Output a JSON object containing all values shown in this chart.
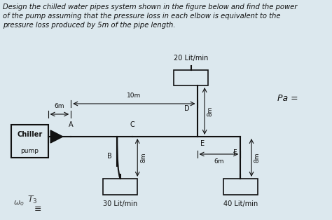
{
  "title_text": "Design the chilled water pipes system shown in the figure below and find the power\nof the pump assuming that the pressure loss in each elbow is equivalent to the\npressure loss produced by 5m of the pipe length.",
  "bg_color": "#dce8ee",
  "line_color": "#111111",
  "text_color": "#111111",
  "font_size_title": 7.2,
  "font_size_label": 7.0,
  "font_size_dim": 6.5,
  "labels": {
    "chiller": "Chiller",
    "pump": "pump",
    "A": "A",
    "B": "B",
    "C": "C",
    "D": "D",
    "E": "E",
    "F": "F",
    "flow1": "20 Lit/min",
    "flow2": "30 Lit/min",
    "flow3": "40 Lit/min",
    "dim_6m": "6m",
    "dim_10m": "10m",
    "dim_8m_D": "8m",
    "dim_6m_EF": "6m",
    "dim_8m_F": "8m",
    "dim_8m_B": "8m",
    "pa_text": "Pa ="
  }
}
